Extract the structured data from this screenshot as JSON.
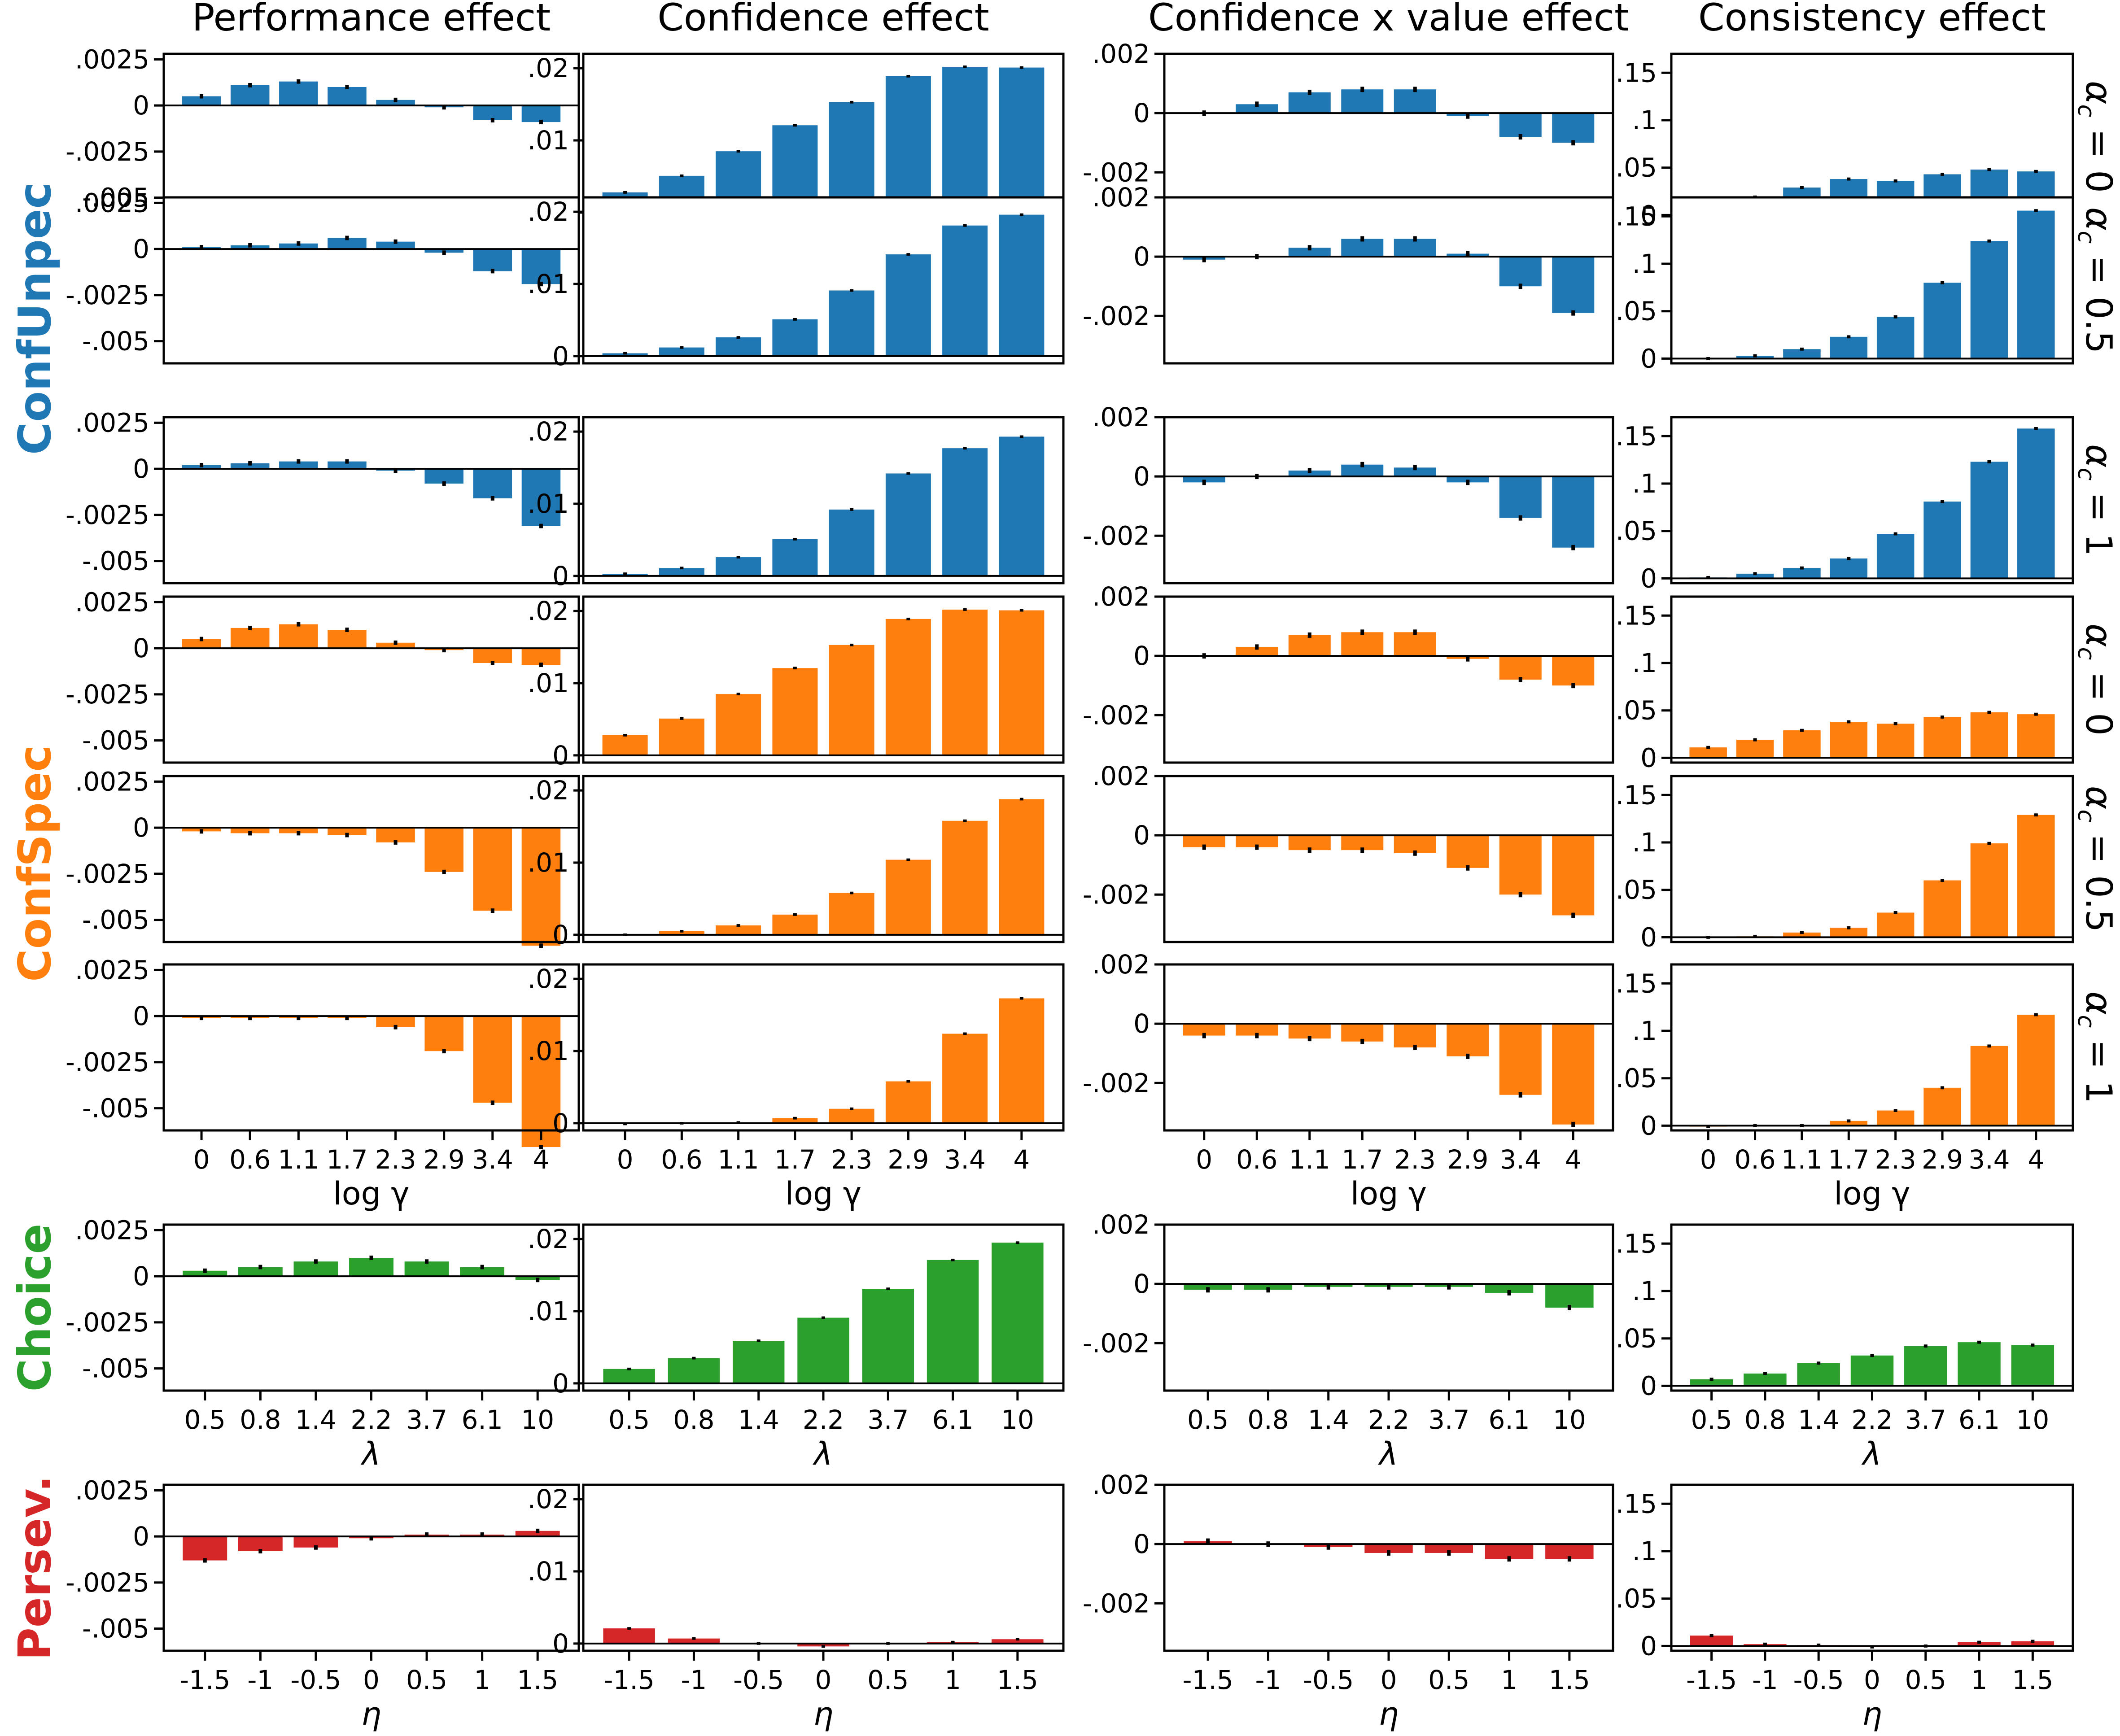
{
  "figure": {
    "col_titles": [
      "Performance effect",
      "Confidence effect",
      "Confidence x value effect",
      "Consistency effect"
    ],
    "row_labels": [
      "ConfUnpec",
      "ConfSpec",
      "Choice",
      "Persev."
    ],
    "alpha_labels": [
      "α_c = 0",
      "α_c = 0.5",
      "α_c = 1",
      "α_c = 0",
      "α_c = 0.5",
      "α_c = 1"
    ],
    "x_labels": {
      "gamma": "log γ",
      "lambda": "λ",
      "eta": "η"
    },
    "colors": {
      "ConfUnpec": "#1f77b4",
      "ConfSpec": "#ff7f0e",
      "Choice": "#2ca02c",
      "Persev.": "#d62728"
    },
    "ticks": {
      "gamma": [
        "0",
        "0.6",
        "1.1",
        "1.7",
        "2.3",
        "2.9",
        "3.4",
        "4"
      ],
      "lambda": [
        "0.5",
        "0.8",
        "1.4",
        "2.2",
        "3.7",
        "6.1",
        "10"
      ],
      "eta": [
        "-1.5",
        "-1",
        "-0.5",
        "0",
        "0.5",
        "1",
        "1.5"
      ]
    },
    "y_ticks": [
      [
        "-.005",
        "-.0025",
        "0",
        ".0025"
      ],
      [
        "0",
        ".01",
        ".02"
      ],
      [
        "-.002",
        "0",
        ".002"
      ],
      [
        "0",
        ".05",
        ".1",
        ".15"
      ]
    ]
  },
  "chart_data": [
    {
      "type": "bar",
      "model": "ConfUnpec",
      "alpha_c": 0,
      "ylim_by_col": [
        [
          -0.0062,
          0.0028
        ],
        [
          -0.001,
          0.022
        ],
        [
          -0.0036,
          0.002
        ],
        [
          -0.005,
          0.17
        ]
      ],
      "categories": [
        "0",
        "0.6",
        "1.1",
        "1.7",
        "2.3",
        "2.9",
        "3.4",
        "4"
      ],
      "series": [
        {
          "effect": "Performance effect",
          "values": [
            0.0005,
            0.0011,
            0.0013,
            0.001,
            0.0003,
            -0.0001,
            -0.0008,
            -0.0009
          ]
        },
        {
          "effect": "Confidence effect",
          "values": [
            0.0028,
            0.0051,
            0.0085,
            0.0121,
            0.0153,
            0.0189,
            0.0202,
            0.0201
          ]
        },
        {
          "effect": "Confidence x value effect",
          "values": [
            0,
            0.0003,
            0.0007,
            0.0008,
            0.0008,
            -0.0001,
            -0.0008,
            -0.001
          ]
        },
        {
          "effect": "Consistency effect",
          "values": [
            0.011,
            0.019,
            0.029,
            0.038,
            0.036,
            0.043,
            0.048,
            0.046
          ]
        }
      ]
    },
    {
      "type": "bar",
      "model": "ConfUnpec",
      "alpha_c": 0.5,
      "categories": [
        "0",
        "0.6",
        "1.1",
        "1.7",
        "2.3",
        "2.9",
        "3.4",
        "4"
      ],
      "series": [
        {
          "effect": "Performance effect",
          "values": [
            0.0001,
            0.0002,
            0.0003,
            0.0006,
            0.0004,
            -0.0002,
            -0.0012,
            -0.0019
          ]
        },
        {
          "effect": "Confidence effect",
          "values": [
            0.0004,
            0.0012,
            0.0026,
            0.0051,
            0.0091,
            0.0141,
            0.0181,
            0.0196
          ]
        },
        {
          "effect": "Confidence x value effect",
          "values": [
            -0.0001,
            0,
            0.0003,
            0.0006,
            0.0006,
            0.0001,
            -0.001,
            -0.0019
          ]
        },
        {
          "effect": "Consistency effect",
          "values": [
            0,
            0.003,
            0.01,
            0.023,
            0.044,
            0.08,
            0.124,
            0.156
          ]
        }
      ]
    },
    {
      "type": "bar",
      "model": "ConfUnpec",
      "alpha_c": 1,
      "categories": [
        "0",
        "0.6",
        "1.1",
        "1.7",
        "2.3",
        "2.9",
        "3.4",
        "4"
      ],
      "series": [
        {
          "effect": "Performance effect",
          "values": [
            0.0002,
            0.0003,
            0.0004,
            0.0004,
            -0.0001,
            -0.0008,
            -0.0016,
            -0.0031
          ]
        },
        {
          "effect": "Confidence effect",
          "values": [
            0.0003,
            0.0011,
            0.0026,
            0.0051,
            0.0092,
            0.0142,
            0.0177,
            0.0193
          ]
        },
        {
          "effect": "Confidence x value effect",
          "values": [
            -0.0002,
            0,
            0.0002,
            0.0004,
            0.0003,
            -0.0002,
            -0.0014,
            -0.0024
          ]
        },
        {
          "effect": "Consistency effect",
          "values": [
            0.001,
            0.005,
            0.011,
            0.021,
            0.047,
            0.081,
            0.123,
            0.158
          ]
        }
      ]
    },
    {
      "type": "bar",
      "model": "ConfSpec",
      "alpha_c": 0,
      "categories": [
        "0",
        "0.6",
        "1.1",
        "1.7",
        "2.3",
        "2.9",
        "3.4",
        "4"
      ],
      "series": [
        {
          "effect": "Performance effect",
          "values": [
            0.0005,
            0.0011,
            0.0013,
            0.001,
            0.0003,
            -0.0001,
            -0.0008,
            -0.0009
          ]
        },
        {
          "effect": "Confidence effect",
          "values": [
            0.0028,
            0.0051,
            0.0085,
            0.0121,
            0.0153,
            0.0189,
            0.0202,
            0.0201
          ]
        },
        {
          "effect": "Confidence x value effect",
          "values": [
            0,
            0.0003,
            0.0007,
            0.0008,
            0.0008,
            -0.0001,
            -0.0008,
            -0.001
          ]
        },
        {
          "effect": "Consistency effect",
          "values": [
            0.011,
            0.019,
            0.029,
            0.038,
            0.036,
            0.043,
            0.048,
            0.046
          ]
        }
      ]
    },
    {
      "type": "bar",
      "model": "ConfSpec",
      "alpha_c": 0.5,
      "categories": [
        "0",
        "0.6",
        "1.1",
        "1.7",
        "2.3",
        "2.9",
        "3.4",
        "4"
      ],
      "series": [
        {
          "effect": "Performance effect",
          "values": [
            -0.0002,
            -0.0003,
            -0.0003,
            -0.0004,
            -0.0008,
            -0.0024,
            -0.0045,
            -0.0064
          ]
        },
        {
          "effect": "Confidence effect",
          "values": [
            0,
            0.0005,
            0.0013,
            0.0028,
            0.0058,
            0.0104,
            0.0158,
            0.0188
          ]
        },
        {
          "effect": "Confidence x value effect",
          "values": [
            -0.0004,
            -0.0004,
            -0.0005,
            -0.0005,
            -0.0006,
            -0.0011,
            -0.002,
            -0.0027
          ]
        },
        {
          "effect": "Consistency effect",
          "values": [
            0,
            0.001,
            0.005,
            0.01,
            0.026,
            0.06,
            0.099,
            0.129
          ]
        }
      ]
    },
    {
      "type": "bar",
      "model": "ConfSpec",
      "alpha_c": 1,
      "categories": [
        "0",
        "0.6",
        "1.1",
        "1.7",
        "2.3",
        "2.9",
        "3.4",
        "4"
      ],
      "series": [
        {
          "effect": "Performance effect",
          "values": [
            -0.0001,
            -0.0001,
            -0.0001,
            -0.0001,
            -0.0006,
            -0.0019,
            -0.0047,
            -0.0071
          ]
        },
        {
          "effect": "Confidence effect",
          "values": [
            -0.0001,
            0,
            0.0001,
            0.0007,
            0.002,
            0.0058,
            0.0124,
            0.0173
          ]
        },
        {
          "effect": "Confidence x value effect",
          "values": [
            -0.0004,
            -0.0004,
            -0.0005,
            -0.0006,
            -0.0008,
            -0.0011,
            -0.0024,
            -0.0034
          ]
        },
        {
          "effect": "Consistency effect",
          "values": [
            -0.001,
            0,
            0,
            0.005,
            0.016,
            0.04,
            0.084,
            0.117
          ]
        }
      ]
    },
    {
      "type": "bar",
      "model": "Choice",
      "categories": [
        "0.5",
        "0.8",
        "1.4",
        "2.2",
        "3.7",
        "6.1",
        "10"
      ],
      "series": [
        {
          "effect": "Performance effect",
          "values": [
            0.0003,
            0.0005,
            0.0008,
            0.001,
            0.0008,
            0.0005,
            -0.0002
          ]
        },
        {
          "effect": "Confidence effect",
          "values": [
            0.002,
            0.0035,
            0.0059,
            0.0091,
            0.0131,
            0.0171,
            0.0195
          ]
        },
        {
          "effect": "Confidence x value effect",
          "values": [
            -0.0002,
            -0.0002,
            -0.0001,
            -0.0001,
            -0.0001,
            -0.0003,
            -0.0008
          ]
        },
        {
          "effect": "Consistency effect",
          "values": [
            0.007,
            0.013,
            0.024,
            0.032,
            0.042,
            0.046,
            0.043
          ]
        }
      ]
    },
    {
      "type": "bar",
      "model": "Persev.",
      "categories": [
        "-1.5",
        "-1",
        "-0.5",
        "0",
        "0.5",
        "1",
        "1.5"
      ],
      "series": [
        {
          "effect": "Performance effect",
          "values": [
            -0.0013,
            -0.0008,
            -0.0006,
            -0.0001,
            0.0001,
            0.0001,
            0.0003
          ]
        },
        {
          "effect": "Confidence effect",
          "values": [
            0.0021,
            0.0007,
            0,
            -0.0004,
            0,
            0.0002,
            0.0006
          ]
        },
        {
          "effect": "Confidence x value effect",
          "values": [
            0.0001,
            0,
            -0.0001,
            -0.0003,
            -0.0003,
            -0.0005,
            -0.0005
          ]
        },
        {
          "effect": "Consistency effect",
          "values": [
            0.011,
            0.002,
            0.001,
            -0.001,
            0,
            0.004,
            0.005
          ]
        }
      ]
    }
  ]
}
